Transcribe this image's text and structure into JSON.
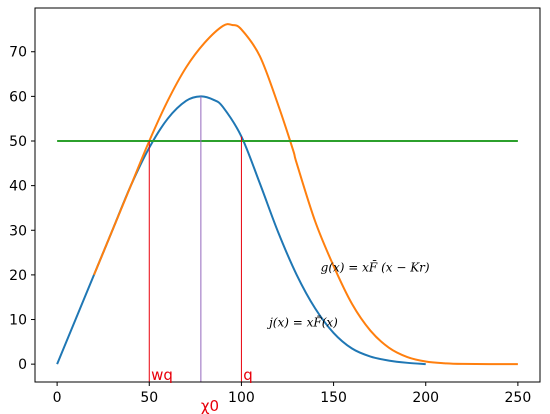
{
  "chart_data": {
    "type": "line",
    "xlim": [
      -12,
      262
    ],
    "ylim": [
      -4,
      79.8
    ],
    "xticks": [
      0,
      50,
      100,
      150,
      200,
      250
    ],
    "yticks": [
      0,
      10,
      20,
      30,
      40,
      50,
      60,
      70
    ],
    "xtick_labels": [
      "0",
      "50",
      "100",
      "150",
      "200",
      "250"
    ],
    "ytick_labels": [
      "0",
      "10",
      "20",
      "30",
      "40",
      "50",
      "60",
      "70"
    ],
    "grid": false,
    "legend": false,
    "series": [
      {
        "color": "#1f77b4",
        "points": [
          [
            0,
            0
          ],
          [
            10,
            10
          ],
          [
            20,
            20
          ],
          [
            30,
            30
          ],
          [
            40,
            40
          ],
          [
            50,
            48.5
          ],
          [
            60,
            55
          ],
          [
            70,
            59
          ],
          [
            78,
            60
          ],
          [
            85,
            59.2
          ],
          [
            90,
            57.6
          ],
          [
            100,
            51
          ],
          [
            110,
            40.5
          ],
          [
            120,
            29.5
          ],
          [
            130,
            20
          ],
          [
            140,
            12.5
          ],
          [
            150,
            7
          ],
          [
            160,
            3.5
          ],
          [
            170,
            1.7
          ],
          [
            180,
            0.8
          ],
          [
            190,
            0.3
          ],
          [
            200,
            0
          ]
        ]
      },
      {
        "color": "#ff7f0e",
        "points": [
          [
            20,
            20
          ],
          [
            30,
            30
          ],
          [
            40,
            40
          ],
          [
            50,
            50
          ],
          [
            60,
            59
          ],
          [
            70,
            66.5
          ],
          [
            80,
            72
          ],
          [
            90,
            75.8
          ],
          [
            95,
            76
          ],
          [
            100,
            75
          ],
          [
            110,
            69
          ],
          [
            120,
            58
          ],
          [
            128,
            48
          ],
          [
            130,
            45
          ],
          [
            140,
            32
          ],
          [
            150,
            22
          ],
          [
            160,
            13.5
          ],
          [
            170,
            7.5
          ],
          [
            180,
            3.7
          ],
          [
            190,
            1.6
          ],
          [
            200,
            0.6
          ],
          [
            210,
            0.2
          ],
          [
            220,
            0.05
          ],
          [
            250,
            0
          ]
        ]
      },
      {
        "color": "#2ca02c",
        "points": [
          [
            0,
            50
          ],
          [
            250,
            50
          ]
        ]
      }
    ],
    "vlines": [
      {
        "x": 50,
        "y0": -3.9,
        "y1": 50,
        "color": "#e8000b"
      },
      {
        "x": 78,
        "y0": -3.9,
        "y1": 60,
        "color": "#9467bd"
      },
      {
        "x": 100,
        "y0": -3.9,
        "y1": 51,
        "color": "#e8000b"
      }
    ],
    "annotations": [
      {
        "text": "wq",
        "x": 51,
        "y": -3.6,
        "color": "#e8000b"
      },
      {
        "text": "q",
        "x": 101,
        "y": -3.6,
        "color": "#e8000b"
      },
      {
        "text": "χ0",
        "x": 78,
        "y": -10.5,
        "color": "#e8000b"
      },
      {
        "text": "g(x) = xF̄ (x − Kr)",
        "x": 143,
        "y": 20.8,
        "color": "#000000"
      },
      {
        "text": "j(x) = xF̄(x)",
        "x": 115,
        "y": 8.4,
        "color": "#000000"
      }
    ]
  }
}
